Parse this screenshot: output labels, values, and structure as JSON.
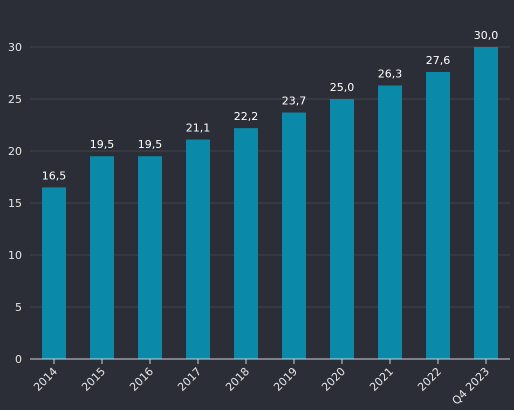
{
  "chart_data": {
    "type": "bar",
    "categories": [
      "2014",
      "2015",
      "2016",
      "2017",
      "2018",
      "2019",
      "2020",
      "2021",
      "2022",
      "Q4 2023"
    ],
    "values": [
      16.5,
      19.5,
      19.5,
      21.1,
      22.2,
      23.7,
      25.0,
      26.3,
      27.6,
      30.0
    ],
    "value_labels": [
      "16,5",
      "19,5",
      "19,5",
      "21,1",
      "22,2",
      "23,7",
      "25,0",
      "26,3",
      "27,6",
      "30,0"
    ],
    "y_ticks": [
      "0",
      "5",
      "10",
      "15",
      "20",
      "25",
      "30"
    ],
    "ylim": [
      0,
      30
    ],
    "grid": true,
    "legend": "none",
    "colors": {
      "background": "#2b2e37",
      "bar": "#0a8aa8",
      "grid": "#41444e",
      "axis": "#cfd2d6",
      "text": "#e6e6e6"
    }
  }
}
